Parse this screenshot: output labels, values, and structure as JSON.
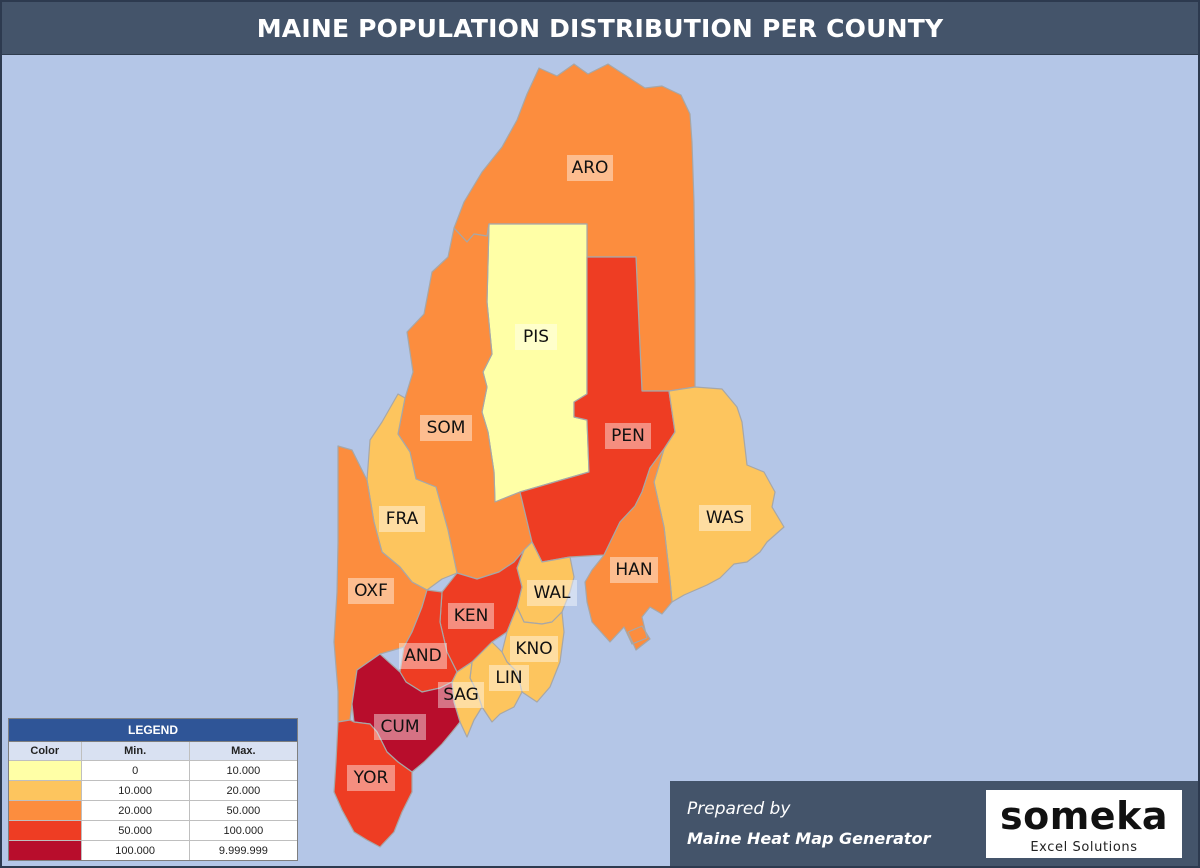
{
  "title": "MAINE POPULATION DISTRIBUTION PER COUNTY",
  "legend": {
    "title": "LEGEND",
    "headers": {
      "color": "Color",
      "min": "Min.",
      "max": "Max."
    },
    "rows": [
      {
        "color": "#ffffa6",
        "min": "0",
        "max": "10.000"
      },
      {
        "color": "#fdc55e",
        "min": "10.000",
        "max": "20.000"
      },
      {
        "color": "#fc8d3e",
        "min": "20.000",
        "max": "50.000"
      },
      {
        "color": "#ee3d23",
        "min": "50.000",
        "max": "100.000"
      },
      {
        "color": "#b80d2c",
        "min": "100.000",
        "max": "9.999.999"
      }
    ]
  },
  "counties": [
    {
      "code": "ARO",
      "color": "#fc8d3e"
    },
    {
      "code": "PIS",
      "color": "#ffffa6"
    },
    {
      "code": "SOM",
      "color": "#fc8d3e"
    },
    {
      "code": "PEN",
      "color": "#ee3d23"
    },
    {
      "code": "FRA",
      "color": "#fdc55e"
    },
    {
      "code": "WAS",
      "color": "#fdc55e"
    },
    {
      "code": "OXF",
      "color": "#fc8d3e"
    },
    {
      "code": "HAN",
      "color": "#fc8d3e"
    },
    {
      "code": "WAL",
      "color": "#fdc55e"
    },
    {
      "code": "KEN",
      "color": "#ee3d23"
    },
    {
      "code": "KNO",
      "color": "#fdc55e"
    },
    {
      "code": "AND",
      "color": "#ee3d23"
    },
    {
      "code": "LIN",
      "color": "#fdc55e"
    },
    {
      "code": "SAG",
      "color": "#fdc55e"
    },
    {
      "code": "CUM",
      "color": "#b80d2c"
    },
    {
      "code": "YOR",
      "color": "#ee3d23"
    }
  ],
  "footer": {
    "prepared_by": "Prepared by",
    "product": "Maine Heat Map Generator"
  },
  "logo": {
    "word": "someka",
    "sub": "Excel Solutions"
  }
}
